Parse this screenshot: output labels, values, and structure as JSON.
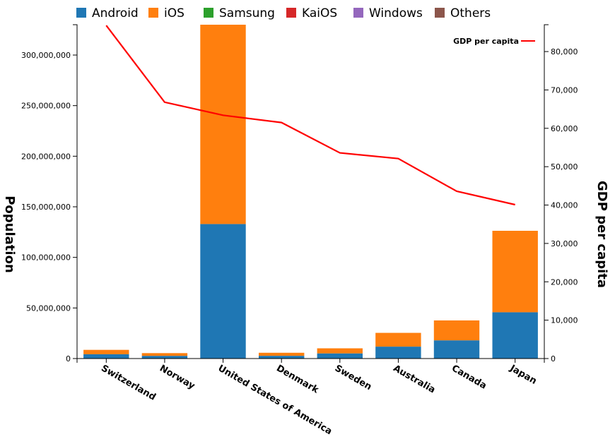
{
  "chart_data": {
    "type": "bar",
    "stacked": true,
    "categories": [
      "Switzerland",
      "Norway",
      "United States of America",
      "Denmark",
      "Sweden",
      "Australia",
      "Canada",
      "Japan"
    ],
    "series": [
      {
        "name": "Android",
        "color": "#1f77b4",
        "values": [
          4300000,
          2700000,
          133000000,
          2700000,
          5100000,
          11800000,
          18000000,
          45800000
        ]
      },
      {
        "name": "iOS",
        "color": "#ff7f0e",
        "values": [
          4300000,
          2700000,
          197000000,
          3000000,
          5000000,
          13600000,
          19700000,
          80500000
        ]
      },
      {
        "name": "Samsung",
        "color": "#2ca02c",
        "values": [
          0,
          0,
          0,
          0,
          0,
          0,
          0,
          0
        ]
      },
      {
        "name": "KaiOS",
        "color": "#d62728",
        "values": [
          0,
          0,
          0,
          0,
          0,
          0,
          0,
          0
        ]
      },
      {
        "name": "Windows",
        "color": "#9467bd",
        "values": [
          0,
          0,
          0,
          0,
          0,
          0,
          0,
          0
        ]
      },
      {
        "name": "Others",
        "color": "#8c564b",
        "values": [
          0,
          0,
          0,
          0,
          0,
          0,
          0,
          0
        ]
      }
    ],
    "line_series": {
      "name": "GDP per capita",
      "color": "#ff0000",
      "values": [
        86800,
        66800,
        63400,
        61500,
        53600,
        52100,
        43600,
        40100
      ]
    },
    "ylabel": "Population",
    "ylabel_right": "GDP per capita",
    "ylim": [
      0,
      330000000
    ],
    "ylim_right": [
      0,
      87000
    ],
    "y_ticks": [
      0,
      50000000,
      100000000,
      150000000,
      200000000,
      250000000,
      300000000
    ],
    "y_tick_labels": [
      "0",
      "50,000,000",
      "100,000,000",
      "150,000,000",
      "200,000,000",
      "250,000,000",
      "300,000,000"
    ],
    "y_right_ticks": [
      0,
      10000,
      20000,
      30000,
      40000,
      50000,
      60000,
      70000,
      80000
    ],
    "y_right_tick_labels": [
      "0",
      "10,000",
      "20,000",
      "30,000",
      "40,000",
      "50,000",
      "60,000",
      "70,000",
      "80,000"
    ],
    "legend_position": "top",
    "line_legend_position": "top-right",
    "grid": false
  }
}
